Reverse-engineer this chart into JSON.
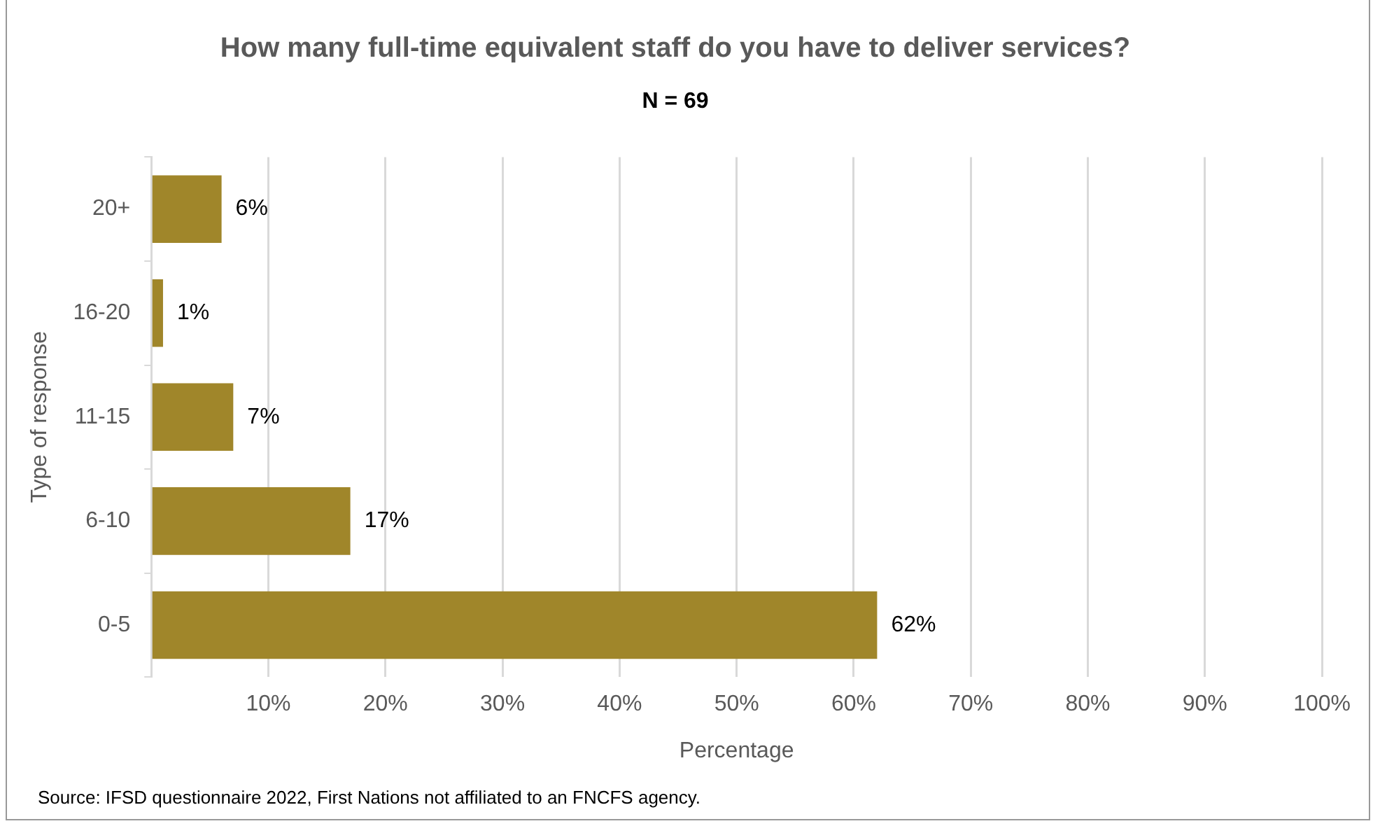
{
  "chart_data": {
    "type": "bar",
    "orientation": "horizontal",
    "title": "How many full-time equivalent staff do you have to deliver services?",
    "subtitle": "N = 69",
    "xlabel": "Percentage",
    "ylabel": "Type of response",
    "categories": [
      "20+",
      "16-20",
      "11-15",
      "6-10",
      "0-5"
    ],
    "values": [
      6,
      1,
      7,
      17,
      62
    ],
    "value_labels": [
      "6%",
      "1%",
      "7%",
      "17%",
      "62%"
    ],
    "color": "#a0862a",
    "xlim": [
      0,
      100
    ],
    "xticks": [
      {
        "value": 0,
        "label": null
      },
      {
        "value": 10,
        "label": "10%"
      },
      {
        "value": 20,
        "label": "20%"
      },
      {
        "value": 30,
        "label": "30%"
      },
      {
        "value": 40,
        "label": "40%"
      },
      {
        "value": 50,
        "label": "50%"
      },
      {
        "value": 60,
        "label": "60%"
      },
      {
        "value": 70,
        "label": "70%"
      },
      {
        "value": 80,
        "label": "80%"
      },
      {
        "value": 90,
        "label": "90%"
      },
      {
        "value": 100,
        "label": "100%"
      }
    ],
    "grid": "x",
    "legend": false,
    "annotations": [
      "Source: IFSD questionnaire 2022, First Nations not affiliated to an FNCFS agency."
    ]
  }
}
